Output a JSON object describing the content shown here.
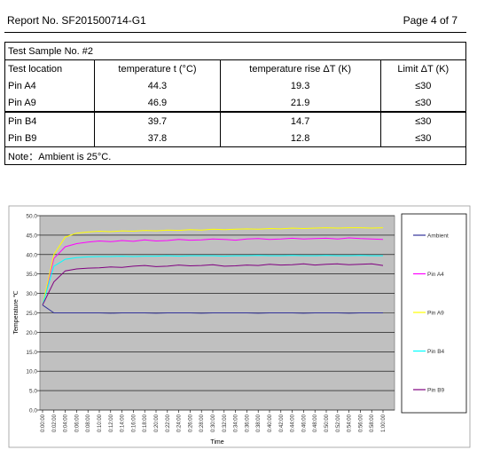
{
  "header": {
    "report_no": "Report No. SF201500714-G1",
    "page": "Page 4 of 7"
  },
  "table": {
    "sample": "Test Sample No. #2",
    "columns": [
      "Test location",
      "temperature t (°C)",
      "temperature rise ΔT (K)",
      "Limit ΔT (K)"
    ],
    "rows": [
      [
        "Pin A4",
        "44.3",
        "19.3",
        "≤30"
      ],
      [
        "Pin A9",
        "46.9",
        "21.9",
        "≤30"
      ],
      [
        "Pin B4",
        "39.7",
        "14.7",
        "≤30"
      ],
      [
        "Pin B9",
        "37.8",
        "12.8",
        "≤30"
      ]
    ],
    "note": "Note：Ambient is 25°C."
  },
  "chart_data": {
    "type": "line",
    "y_label": "Temperature ℃",
    "x_label": "Time",
    "categories": [
      "0:00:00",
      "0:02:00",
      "0:04:00",
      "0:06:00",
      "0:08:00",
      "0:10:00",
      "0:12:00",
      "0:14:00",
      "0:16:00",
      "0:18:00",
      "0:20:00",
      "0:22:00",
      "0:24:00",
      "0:26:00",
      "0:28:00",
      "0:30:00",
      "0:32:00",
      "0:34:00",
      "0:36:00",
      "0:38:00",
      "0:40:00",
      "0:42:00",
      "0:44:00",
      "0:46:00",
      "0:48:00",
      "0:50:00",
      "0:52:00",
      "0:54:00",
      "0:56:00",
      "0:58:00",
      "1:00:00"
    ],
    "series": [
      {
        "name": "Ambient",
        "color": "#333399",
        "values": [
          27,
          25,
          25,
          25,
          25,
          25,
          24.9,
          25,
          25,
          25,
          24.9,
          25,
          25,
          25,
          24.9,
          25,
          25,
          25,
          25,
          24.9,
          25,
          25,
          25,
          24.9,
          25,
          25,
          25,
          24.9,
          25,
          25,
          25
        ]
      },
      {
        "name": "Pin A4",
        "color": "#ff00ff",
        "values": [
          27,
          39,
          42,
          42.8,
          43.2,
          43.5,
          43.3,
          43.6,
          43.4,
          43.8,
          43.5,
          43.6,
          43.9,
          43.7,
          43.8,
          44,
          43.9,
          43.7,
          44,
          44.1,
          43.9,
          44,
          44.2,
          44,
          44.1,
          44.2,
          44,
          44.3,
          44.1,
          44,
          43.9
        ]
      },
      {
        "name": "Pin A9",
        "color": "#ffff00",
        "values": [
          27,
          40,
          44.5,
          45.5,
          45.8,
          46,
          45.9,
          46.1,
          46,
          46.2,
          46.1,
          46.3,
          46.2,
          46.4,
          46.3,
          46.5,
          46.4,
          46.5,
          46.6,
          46.5,
          46.7,
          46.6,
          46.8,
          46.7,
          46.8,
          46.9,
          46.8,
          46.9,
          46.9,
          46.8,
          46.9
        ]
      },
      {
        "name": "Pin B4",
        "color": "#00ffff",
        "values": [
          27,
          37,
          38.8,
          39.2,
          39.4,
          39.5,
          39.5,
          39.6,
          39.5,
          39.6,
          39.6,
          39.7,
          39.6,
          39.7,
          39.7,
          39.7,
          39.6,
          39.7,
          39.7,
          39.8,
          39.7,
          39.7,
          39.8,
          39.7,
          39.7,
          39.8,
          39.7,
          39.7,
          39.8,
          39.7,
          39.7
        ]
      },
      {
        "name": "Pin B9",
        "color": "#800080",
        "values": [
          27,
          33,
          35.8,
          36.3,
          36.5,
          36.6,
          36.8,
          36.7,
          37,
          37.2,
          36.9,
          37,
          37.3,
          37.1,
          37.2,
          37.4,
          37,
          37.1,
          37.3,
          37.2,
          37.5,
          37.3,
          37.4,
          37.6,
          37.3,
          37.5,
          37.6,
          37.4,
          37.5,
          37.6,
          37.2
        ]
      }
    ],
    "ylim": [
      0,
      50
    ],
    "yticks": [
      {
        "value": 0,
        "label": "0.0"
      },
      {
        "value": 5,
        "label": "5.0"
      },
      {
        "value": 10,
        "label": "10.0"
      },
      {
        "value": 15,
        "label": "15.0"
      },
      {
        "value": 20,
        "label": "20.0"
      },
      {
        "value": 25,
        "label": "25.0"
      },
      {
        "value": 30,
        "label": "30.0"
      },
      {
        "value": 35,
        "label": "35.0"
      },
      {
        "value": 40,
        "label": "40.0"
      },
      {
        "value": 45,
        "label": "45.0"
      },
      {
        "value": 50,
        "label": "50.0"
      }
    ],
    "grid": true,
    "plot_background": "#c0c0c0",
    "legend": "right"
  }
}
